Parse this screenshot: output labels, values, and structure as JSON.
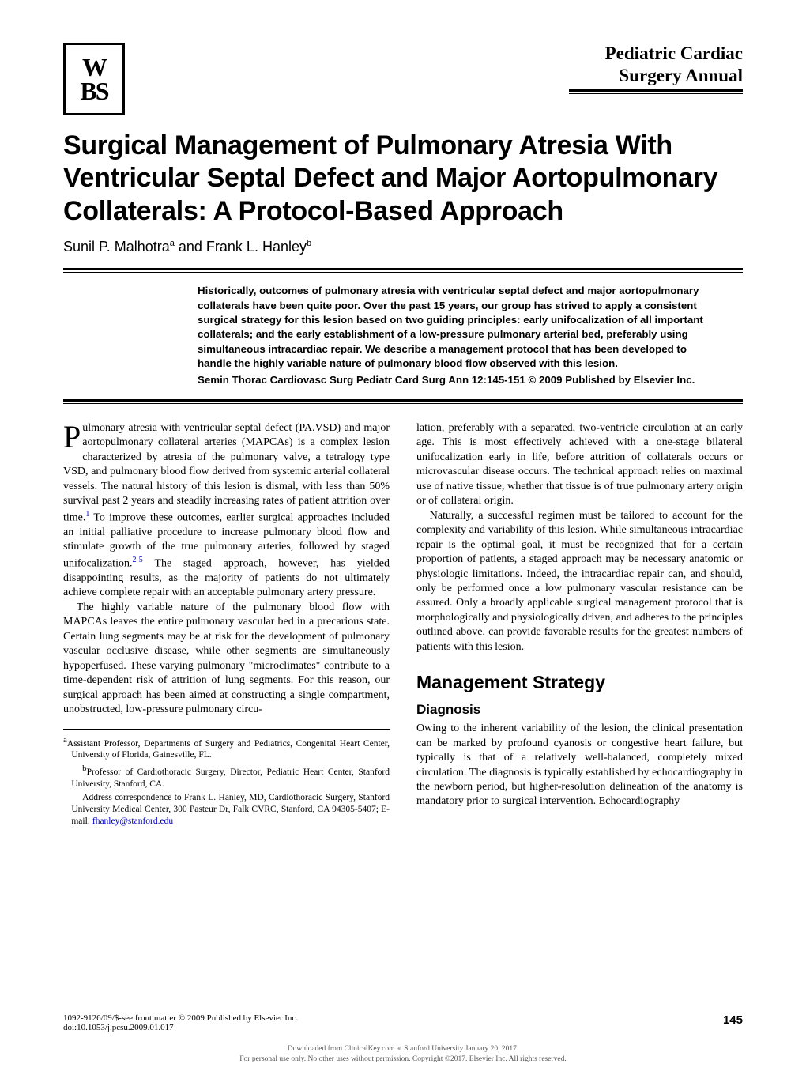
{
  "logo": "W\nBS",
  "journal": {
    "line1": "Pediatric Cardiac",
    "line2": "Surgery Annual"
  },
  "title": "Surgical Management of Pulmonary Atresia With Ventricular Septal Defect and Major Aortopulmonary Collaterals: A Protocol-Based Approach",
  "authors": {
    "a1": "Sunil P. Malhotra",
    "sup1": "a",
    "and": " and ",
    "a2": "Frank L. Hanley",
    "sup2": "b"
  },
  "abstract": {
    "p1": "Historically, outcomes of pulmonary atresia with ventricular septal defect and major aortopulmonary collaterals have been quite poor. Over the past 15 years, our group has strived to apply a consistent surgical strategy for this lesion based on two guiding principles: early unifocalization of all important collaterals; and the early establishment of a low-pressure pulmonary arterial bed, preferably using simultaneous intracardiac repair. We describe a management protocol that has been developed to handle the highly variable nature of pulmonary blood flow observed with this lesion.",
    "p2": "Semin Thorac Cardiovasc Surg Pediatr Card Surg Ann 12:145-151 © 2009 Published by Elsevier Inc."
  },
  "body": {
    "left": {
      "p1a": "Pulmonary atresia with ventricular septal defect (PA.VSD) and major aortopulmonary collateral arteries (MAPCAs) is a complex lesion characterized by atresia of the pulmonary valve, a tetralogy type VSD, and pulmonary blood flow derived from systemic arterial collateral vessels. The natural history of this lesion is dismal, with less than 50% survival past 2 years and steadily increasing rates of patient attrition over time.",
      "ref1": "1",
      "p1b": " To improve these outcomes, earlier surgical approaches included an initial palliative procedure to increase pulmonary blood flow and stimulate growth of the true pulmonary arteries, followed by staged unifocalization.",
      "ref2": "2-5",
      "p1c": " The staged approach, however, has yielded disappointing results, as the majority of patients do not ultimately achieve complete repair with an acceptable pulmonary artery pressure.",
      "p2": "The highly variable nature of the pulmonary blood flow with MAPCAs leaves the entire pulmonary vascular bed in a precarious state. Certain lung segments may be at risk for the development of pulmonary vascular occlusive disease, while other segments are simultaneously hypoperfused. These varying pulmonary \"microclimates\" contribute to a time-dependent risk of attrition of lung segments. For this reason, our surgical approach has been aimed at constructing a single compartment, unobstructed, low-pressure pulmonary circu-"
    },
    "right": {
      "p1": "lation, preferably with a separated, two-ventricle circulation at an early age. This is most effectively achieved with a one-stage bilateral unifocalization early in life, before attrition of collaterals occurs or microvascular disease occurs. The technical approach relies on maximal use of native tissue, whether that tissue is of true pulmonary artery origin or of collateral origin.",
      "p2": "Naturally, a successful regimen must be tailored to account for the complexity and variability of this lesion. While simultaneous intracardiac repair is the optimal goal, it must be recognized that for a certain proportion of patients, a staged approach may be necessary anatomic or physiologic limitations. Indeed, the intracardiac repair can, and should, only be performed once a low pulmonary vascular resistance can be assured. Only a broadly applicable surgical management protocol that is morphologically and physiologically driven, and adheres to the principles outlined above, can provide favorable results for the greatest numbers of patients with this lesion.",
      "h1": "Management Strategy",
      "h2": "Diagnosis",
      "p3": "Owing to the inherent variability of the lesion, the clinical presentation can be marked by profound cyanosis or congestive heart failure, but typically is that of a relatively well-balanced, completely mixed circulation. The diagnosis is typically established by echocardiography in the newborn period, but higher-resolution delineation of the anatomy is mandatory prior to surgical intervention. Echocardiography"
    }
  },
  "footnotes": {
    "f1": {
      "sup": "a",
      "text": "Assistant Professor, Departments of Surgery and Pediatrics, Congenital Heart Center, University of Florida, Gainesville, FL."
    },
    "f2": {
      "sup": "b",
      "text": "Professor of Cardiothoracic Surgery, Director, Pediatric Heart Center, Stanford University, Stanford, CA."
    },
    "f3": {
      "text": "Address correspondence to Frank L. Hanley, MD, Cardiothoracic Surgery, Stanford University Medical Center, 300 Pasteur Dr, Falk CVRC, Stanford, CA 94305-5407; E-mail: ",
      "email": "fhanley@stanford.edu"
    }
  },
  "footer": {
    "left1": "1092-9126/09/$-see front matter © 2009 Published by Elsevier Inc.",
    "left2": "doi:10.1053/j.pcsu.2009.01.017",
    "page": "145"
  },
  "download": {
    "l1": "Downloaded from ClinicalKey.com at Stanford University January 20, 2017.",
    "l2": "For personal use only. No other uses without permission. Copyright ©2017. Elsevier Inc. All rights reserved."
  }
}
